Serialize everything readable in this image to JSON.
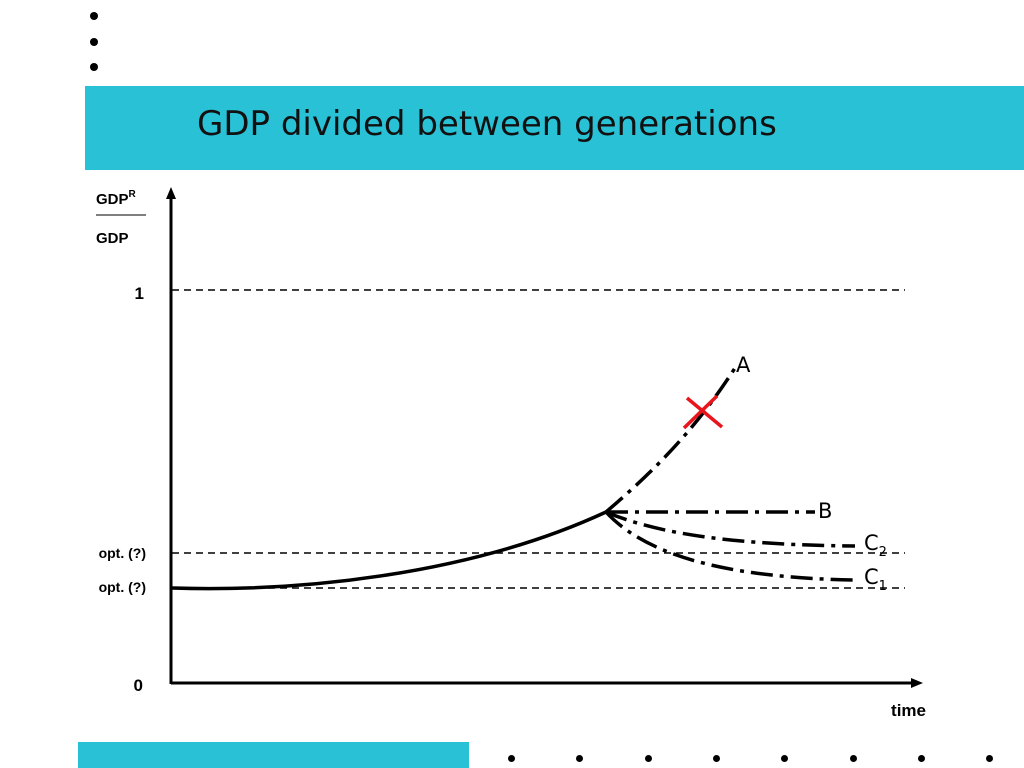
{
  "slide": {
    "title": "GDP divided between generations",
    "accent_color": "#29c1d6",
    "marker_color": "#e8161c"
  },
  "axes": {
    "y_numerator": "GDP",
    "y_superscript": "R",
    "y_denominator": "GDP",
    "x_label": "time",
    "tick_one": "1",
    "tick_zero": "0",
    "opt_upper": "opt. (?)",
    "opt_lower": "opt. (?)"
  },
  "curves": {
    "a": "A",
    "b": "B",
    "c2_base": "C",
    "c2_sub": "2",
    "c1_base": "C",
    "c1_sub": "1"
  },
  "icons": {
    "bullets": "bullet-dot-icon",
    "stop_marker": "red-x-icon",
    "axis_arrows": "arrow-head-icon"
  }
}
